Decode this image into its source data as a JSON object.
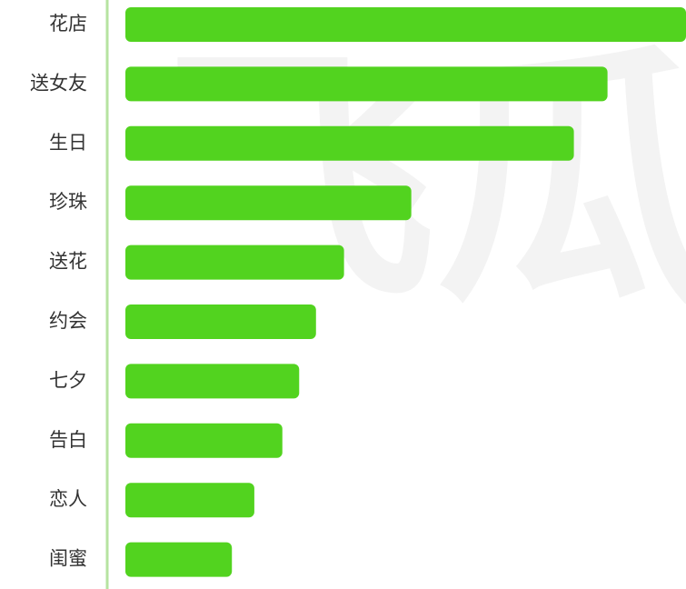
{
  "chart_data": {
    "type": "bar",
    "orientation": "horizontal",
    "watermark": "飞瓜",
    "categories": [
      "花店",
      "送女友",
      "生日",
      "珍珠",
      "送花",
      "约会",
      "七夕",
      "告白",
      "恋人",
      "闺蜜"
    ],
    "values": [
      100,
      86,
      80,
      51,
      39,
      34,
      31,
      28,
      23,
      19
    ],
    "color": "#52d31f",
    "xlim": [
      0,
      100
    ]
  }
}
